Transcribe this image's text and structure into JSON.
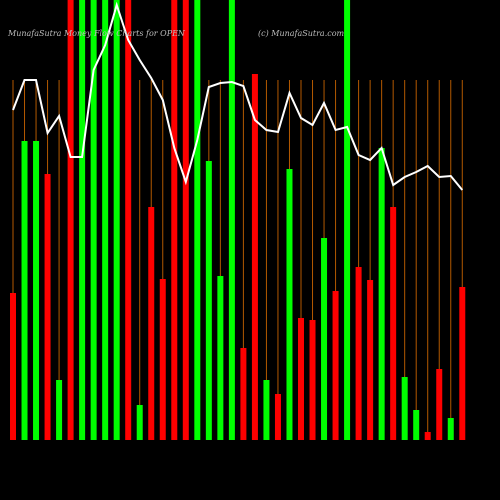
{
  "chart_data": {
    "type": "bar",
    "title": "MunafaSutra Money Flow Charts for OPEN",
    "subtitle": "(c) MunafaSutra.com",
    "values": [
      147,
      299,
      299,
      266,
      60,
      440,
      440,
      440,
      440,
      440,
      440,
      35,
      233,
      161,
      440,
      440,
      440,
      279,
      164,
      440,
      92,
      366,
      60,
      46,
      271,
      122,
      120,
      202,
      149,
      440,
      173,
      160,
      292,
      233,
      63,
      30,
      8,
      71,
      22,
      153
    ],
    "bar_colors": [
      "#ff0000",
      "#00ff00",
      "#00ff00",
      "#ff0000",
      "#00ff00",
      "#ff0000",
      "#00ff00",
      "#00ff00",
      "#00ff00",
      "#00ff00",
      "#ff0000",
      "#00ff00",
      "#ff0000",
      "#ff0000",
      "#ff0000",
      "#ff0000",
      "#00ff00",
      "#00ff00",
      "#00ff00",
      "#00ff00",
      "#ff0000",
      "#ff0000",
      "#00ff00",
      "#ff0000",
      "#00ff00",
      "#ff0000",
      "#ff0000",
      "#00ff00",
      "#ff0000",
      "#00ff00",
      "#ff0000",
      "#ff0000",
      "#00ff00",
      "#ff0000",
      "#00ff00",
      "#00ff00",
      "#ff0000",
      "#ff0000",
      "#00ff00",
      "#ff0000"
    ],
    "line_values": [
      330,
      360,
      360,
      307,
      324,
      283,
      283,
      370,
      395,
      435,
      400,
      380,
      362,
      340,
      292,
      258,
      300,
      353,
      357,
      358,
      354,
      320,
      310,
      308,
      347,
      322,
      315,
      337,
      310,
      313,
      285,
      280,
      292,
      255,
      263,
      268,
      274,
      263,
      264,
      250
    ],
    "line_color": "#ffffff",
    "ylim": [
      0,
      440
    ]
  }
}
